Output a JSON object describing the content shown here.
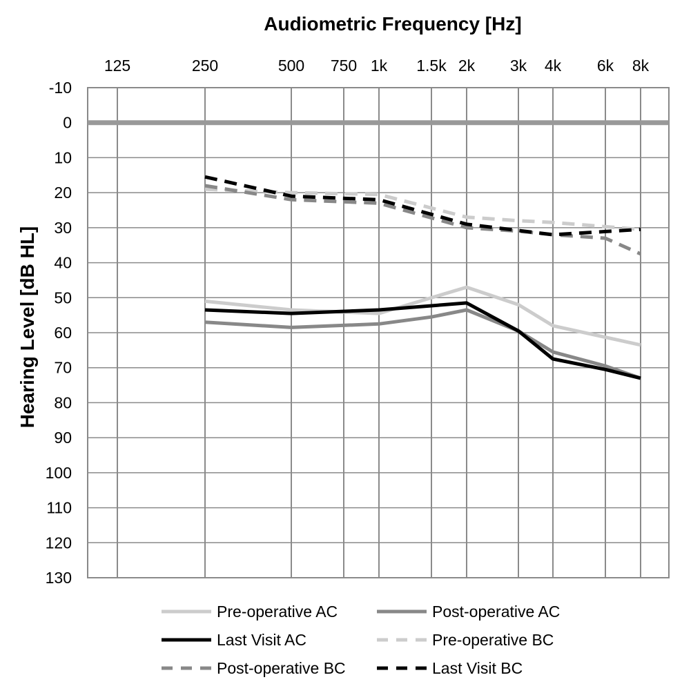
{
  "chart_data": {
    "type": "line",
    "title": "",
    "xlabel": "Audiometric Frequency [Hz]",
    "ylabel": "Hearing Level [dB HL]",
    "x_ticks": [
      "125",
      "250",
      "500",
      "750",
      "1k",
      "1.5k",
      "2k",
      "3k",
      "4k",
      "6k",
      "8k"
    ],
    "x_tick_values": [
      125,
      250,
      500,
      750,
      1000,
      1500,
      2000,
      3000,
      4000,
      6000,
      8000
    ],
    "x_scale": "log",
    "x_position": "top",
    "y_ticks": [
      -10,
      0,
      10,
      20,
      30,
      40,
      50,
      60,
      70,
      80,
      90,
      100,
      110,
      120,
      130
    ],
    "ylim": [
      -10,
      130
    ],
    "y_inverted": true,
    "grid": true,
    "reference_line": {
      "y": 0,
      "color": "#999999"
    },
    "legend_position": "bottom",
    "series": [
      {
        "name": "Pre-operative AC",
        "color": "#cccccc",
        "dash": "solid",
        "x": [
          250,
          500,
          1000,
          2000,
          3000,
          4000,
          8000
        ],
        "y": [
          51,
          53.5,
          54.5,
          47,
          52,
          58,
          63.5
        ]
      },
      {
        "name": "Post-operative AC",
        "color": "#888888",
        "dash": "solid",
        "x": [
          250,
          500,
          1000,
          1500,
          2000,
          3000,
          4000,
          6000,
          8000
        ],
        "y": [
          57,
          58.5,
          57.5,
          55.5,
          53.5,
          59.5,
          65.5,
          69.5,
          73
        ]
      },
      {
        "name": "Last Visit AC",
        "color": "#000000",
        "dash": "solid",
        "x": [
          250,
          500,
          1000,
          2000,
          3000,
          4000,
          6000,
          8000
        ],
        "y": [
          53.5,
          54.5,
          53.5,
          51.5,
          59.5,
          67.5,
          70.5,
          73
        ]
      },
      {
        "name": "Pre-operative BC",
        "color": "#cccccc",
        "dash": "dashed",
        "x": [
          250,
          500,
          1000,
          2000,
          3000,
          4000,
          8000
        ],
        "y": [
          19,
          20,
          20.5,
          27,
          28,
          28.5,
          30.5
        ]
      },
      {
        "name": "Post-operative BC",
        "color": "#888888",
        "dash": "dashed",
        "x": [
          250,
          500,
          1000,
          2000,
          3000,
          4000,
          6000,
          8000
        ],
        "y": [
          18,
          22,
          23,
          30,
          31,
          32,
          33,
          37.5
        ]
      },
      {
        "name": "Last Visit BC",
        "color": "#000000",
        "dash": "dashed",
        "x": [
          250,
          500,
          1000,
          2000,
          4000,
          8000
        ],
        "y": [
          15.5,
          21,
          22,
          29,
          32,
          30.5
        ]
      }
    ]
  }
}
